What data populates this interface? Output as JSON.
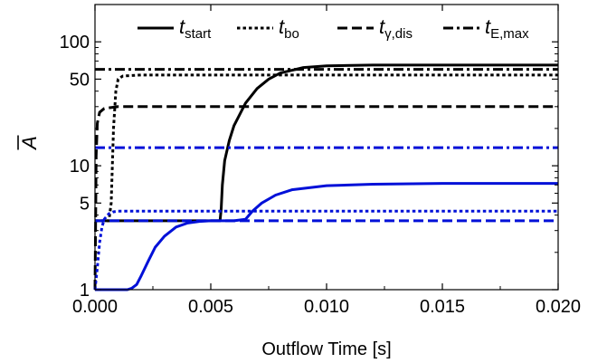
{
  "chart_data": {
    "type": "line",
    "xlabel": "Outflow Time [s]",
    "ylabel_base": "A",
    "ylabel_bar": true,
    "xlim": [
      0,
      0.02
    ],
    "ylim": [
      1,
      200
    ],
    "yscale": "log",
    "xticks": [
      0,
      0.005,
      0.01,
      0.015,
      0.02
    ],
    "xtick_labels": [
      "0.000",
      "0.005",
      "0.010",
      "0.015",
      "0.020"
    ],
    "yticks": [
      1,
      5,
      10,
      50,
      100
    ],
    "ytick_labels": [
      "1",
      "5",
      "10",
      "50",
      "100"
    ],
    "grid": false,
    "legend_position": "top",
    "legend": [
      {
        "main": "t",
        "sub": "start",
        "dash": "solid"
      },
      {
        "main": "t",
        "sub": "bo",
        "dash": "dotted"
      },
      {
        "main": "t",
        "sub": "γ,dis",
        "dash": "dashed"
      },
      {
        "main": "t",
        "sub": "E,max",
        "dash": "dashdot"
      }
    ],
    "series": [
      {
        "style": "start",
        "color": "#000000",
        "dash": "solid",
        "x": [
          0,
          0.0054,
          0.00545,
          0.0055,
          0.0056,
          0.0058,
          0.006,
          0.0065,
          0.007,
          0.0075,
          0.008,
          0.009,
          0.01,
          0.012,
          0.015,
          0.02
        ],
        "y": [
          3.6,
          3.6,
          4.5,
          7,
          11,
          16,
          21,
          32,
          42,
          50,
          56,
          62,
          64,
          65,
          65,
          65
        ]
      },
      {
        "style": "bo",
        "color": "#000000",
        "dash": "dotted",
        "x": [
          0,
          0.0006,
          0.0007,
          0.00075,
          0.0008,
          0.0009,
          0.001,
          0.0012,
          0.002,
          0.01,
          0.02
        ],
        "y": [
          3.6,
          3.6,
          5,
          10,
          20,
          40,
          50,
          53,
          54,
          54,
          54
        ]
      },
      {
        "style": "gamma",
        "color": "#000000",
        "dash": "dashed",
        "x": [
          0,
          3e-05,
          5e-05,
          0.0001,
          0.0002,
          0.0004,
          0.001,
          0.02
        ],
        "y": [
          1,
          4,
          12,
          22,
          27,
          29,
          30,
          30
        ]
      },
      {
        "style": "emax",
        "color": "#000000",
        "dash": "dashdot",
        "x": [
          0,
          0.02
        ],
        "y": [
          60,
          60
        ]
      },
      {
        "style": "start",
        "color": "#0010d8",
        "dash": "solid",
        "x": [
          0,
          0.0014,
          0.0016,
          0.0018,
          0.002,
          0.0023,
          0.0026,
          0.003,
          0.0035,
          0.004,
          0.0045,
          0.005,
          0.006,
          0.0065,
          0.0068,
          0.0072,
          0.0078,
          0.0085,
          0.01,
          0.012,
          0.015,
          0.02
        ],
        "y": [
          1,
          1,
          1.03,
          1.1,
          1.3,
          1.7,
          2.2,
          2.7,
          3.2,
          3.45,
          3.55,
          3.6,
          3.6,
          3.7,
          4.3,
          5,
          5.8,
          6.4,
          6.9,
          7.1,
          7.2,
          7.2
        ]
      },
      {
        "style": "bo",
        "color": "#0010d8",
        "dash": "dotted",
        "x": [
          0,
          0.0001,
          0.0002,
          0.0003,
          0.0004,
          0.0006,
          0.0008,
          0.001,
          0.0015,
          0.02
        ],
        "y": [
          1,
          1.5,
          2.4,
          3.2,
          3.7,
          4.1,
          4.25,
          4.3,
          4.3,
          4.3
        ]
      },
      {
        "style": "gamma",
        "color": "#0010d8",
        "dash": "dashed",
        "x": [
          0,
          0.02
        ],
        "y": [
          3.6,
          3.6
        ]
      },
      {
        "style": "emax",
        "color": "#0010d8",
        "dash": "dashdot",
        "x": [
          0,
          0.02
        ],
        "y": [
          14,
          14
        ]
      }
    ]
  }
}
